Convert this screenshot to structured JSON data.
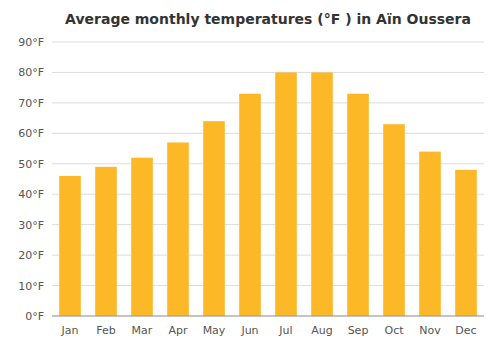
{
  "chart_data": {
    "type": "bar",
    "title": "Average monthly temperatures (°F ) in Aïn Oussera",
    "categories": [
      "Jan",
      "Feb",
      "Mar",
      "Apr",
      "May",
      "Jun",
      "Jul",
      "Aug",
      "Sep",
      "Oct",
      "Nov",
      "Dec"
    ],
    "values": [
      46,
      49,
      52,
      57,
      64,
      73,
      80,
      80,
      73,
      63,
      54,
      48
    ],
    "color": "#FDB827",
    "ylim": [
      0,
      90
    ],
    "yticks": [
      {
        "value": 0,
        "label": "0°F"
      },
      {
        "value": 10,
        "label": "10°F"
      },
      {
        "value": 20,
        "label": "20°F"
      },
      {
        "value": 30,
        "label": "30°F"
      },
      {
        "value": 40,
        "label": "40°F"
      },
      {
        "value": 50,
        "label": "50°F"
      },
      {
        "value": 60,
        "label": "60°F"
      },
      {
        "value": 70,
        "label": "70°F"
      },
      {
        "value": 80,
        "label": "80°F"
      },
      {
        "value": 90,
        "label": "90°F"
      }
    ],
    "grid": true
  }
}
